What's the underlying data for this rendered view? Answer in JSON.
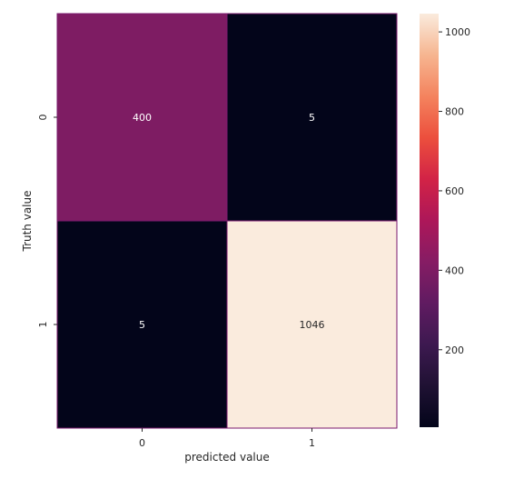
{
  "chart_data": {
    "type": "heatmap",
    "title": "",
    "xlabel": "predicted value",
    "ylabel": "Truth value",
    "x_categories": [
      "0",
      "1"
    ],
    "y_categories": [
      "0",
      "1"
    ],
    "values": [
      [
        400,
        5
      ],
      [
        5,
        1046
      ]
    ],
    "colorbar": {
      "min": 5,
      "max": 1046,
      "ticks": [
        200,
        400,
        600,
        800,
        1000
      ],
      "tick_labels": [
        "200",
        "400",
        "600",
        "800",
        "1000"
      ]
    },
    "colormap": "rocket",
    "cell_border_color": "#7b1a6e"
  }
}
